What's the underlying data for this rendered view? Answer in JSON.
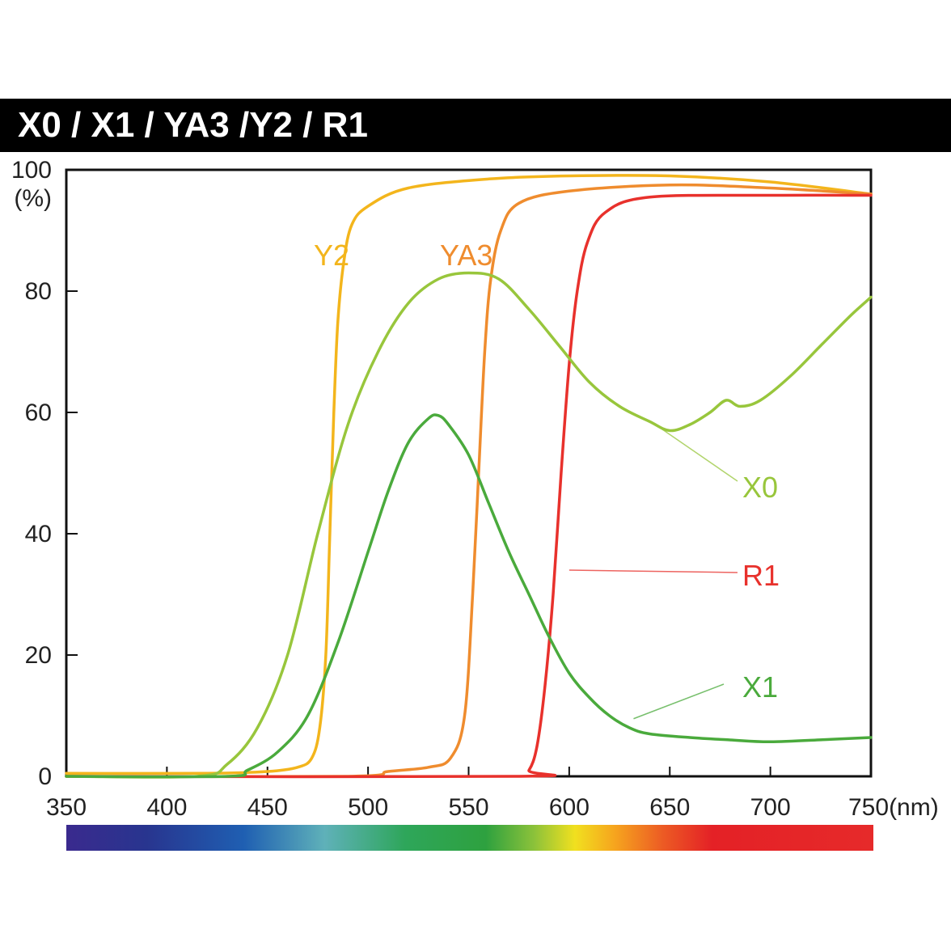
{
  "title": "X0 / X1 / YA3 /Y2 / R1",
  "chart_data": {
    "type": "line",
    "title": "X0 / X1 / YA3 /Y2 / R1",
    "xlabel": "(nm)",
    "ylabel": "(%)",
    "xlim": [
      350,
      750
    ],
    "ylim": [
      0,
      100
    ],
    "x_ticks": [
      "350",
      "400",
      "450",
      "500",
      "550",
      "600",
      "650",
      "700",
      "750"
    ],
    "y_ticks": [
      "0",
      "20",
      "40",
      "60",
      "80",
      "100"
    ],
    "x_unit_label": "(nm)",
    "y_unit_label": "(%)",
    "grid": false,
    "spectrum_bar": true,
    "series": [
      {
        "name": "Y2",
        "color": "#f3b51c",
        "points": [
          [
            350,
            0.5
          ],
          [
            420,
            0.5
          ],
          [
            450,
            0.8
          ],
          [
            465,
            1.5
          ],
          [
            472,
            3
          ],
          [
            476,
            8
          ],
          [
            479,
            20
          ],
          [
            481,
            40
          ],
          [
            483,
            60
          ],
          [
            485,
            75
          ],
          [
            488,
            85
          ],
          [
            492,
            91
          ],
          [
            500,
            94
          ],
          [
            520,
            97
          ],
          [
            560,
            98.5
          ],
          [
            600,
            99
          ],
          [
            650,
            99
          ],
          [
            700,
            98
          ],
          [
            750,
            96
          ]
        ]
      },
      {
        "name": "YA3",
        "color": "#ef8c2e",
        "points": [
          [
            350,
            0
          ],
          [
            490,
            0
          ],
          [
            510,
            0.8
          ],
          [
            530,
            1.5
          ],
          [
            541,
            3
          ],
          [
            548,
            10
          ],
          [
            552,
            30
          ],
          [
            555,
            50
          ],
          [
            558,
            70
          ],
          [
            561,
            82
          ],
          [
            566,
            90
          ],
          [
            575,
            94.5
          ],
          [
            600,
            96.5
          ],
          [
            650,
            97.5
          ],
          [
            700,
            97
          ],
          [
            750,
            96
          ]
        ]
      },
      {
        "name": "R1",
        "color": "#e8312c",
        "points": [
          [
            350,
            0
          ],
          [
            575,
            0
          ],
          [
            580,
            1
          ],
          [
            584,
            5
          ],
          [
            588,
            15
          ],
          [
            592,
            30
          ],
          [
            596,
            50
          ],
          [
            600,
            68
          ],
          [
            604,
            80
          ],
          [
            609,
            88
          ],
          [
            618,
            93
          ],
          [
            640,
            95.5
          ],
          [
            700,
            95.8
          ],
          [
            750,
            95.8
          ]
        ]
      },
      {
        "name": "X0",
        "color": "#98c63c",
        "points": [
          [
            350,
            0
          ],
          [
            415,
            0
          ],
          [
            430,
            2
          ],
          [
            445,
            8
          ],
          [
            460,
            20
          ],
          [
            475,
            40
          ],
          [
            490,
            58
          ],
          [
            505,
            70
          ],
          [
            520,
            78
          ],
          [
            535,
            82
          ],
          [
            550,
            83
          ],
          [
            565,
            82
          ],
          [
            580,
            77
          ],
          [
            595,
            71
          ],
          [
            610,
            65
          ],
          [
            625,
            61
          ],
          [
            640,
            58.5
          ],
          [
            650,
            57
          ],
          [
            660,
            58
          ],
          [
            670,
            60
          ],
          [
            678,
            62
          ],
          [
            685,
            61
          ],
          [
            695,
            62
          ],
          [
            710,
            66
          ],
          [
            725,
            71
          ],
          [
            740,
            76
          ],
          [
            750,
            79
          ]
        ]
      },
      {
        "name": "X1",
        "color": "#4aaa3c",
        "points": [
          [
            350,
            0
          ],
          [
            430,
            0
          ],
          [
            440,
            1
          ],
          [
            455,
            4
          ],
          [
            470,
            10
          ],
          [
            485,
            22
          ],
          [
            500,
            37
          ],
          [
            510,
            47
          ],
          [
            520,
            55
          ],
          [
            530,
            59
          ],
          [
            535,
            59.5
          ],
          [
            540,
            58
          ],
          [
            550,
            53
          ],
          [
            560,
            45
          ],
          [
            570,
            37
          ],
          [
            580,
            30
          ],
          [
            590,
            23
          ],
          [
            600,
            17
          ],
          [
            610,
            13
          ],
          [
            620,
            10
          ],
          [
            630,
            8
          ],
          [
            640,
            7
          ],
          [
            660,
            6.4
          ],
          [
            680,
            6
          ],
          [
            700,
            5.7
          ],
          [
            730,
            6.1
          ],
          [
            750,
            6.4
          ]
        ]
      }
    ],
    "annotations": [
      {
        "text": "Y2",
        "color": "#f3b51c"
      },
      {
        "text": "YA3",
        "color": "#ef8c2e"
      },
      {
        "text": "X0",
        "color": "#98c63c"
      },
      {
        "text": "R1",
        "color": "#e8312c"
      },
      {
        "text": "X1",
        "color": "#4aaa3c"
      }
    ]
  }
}
